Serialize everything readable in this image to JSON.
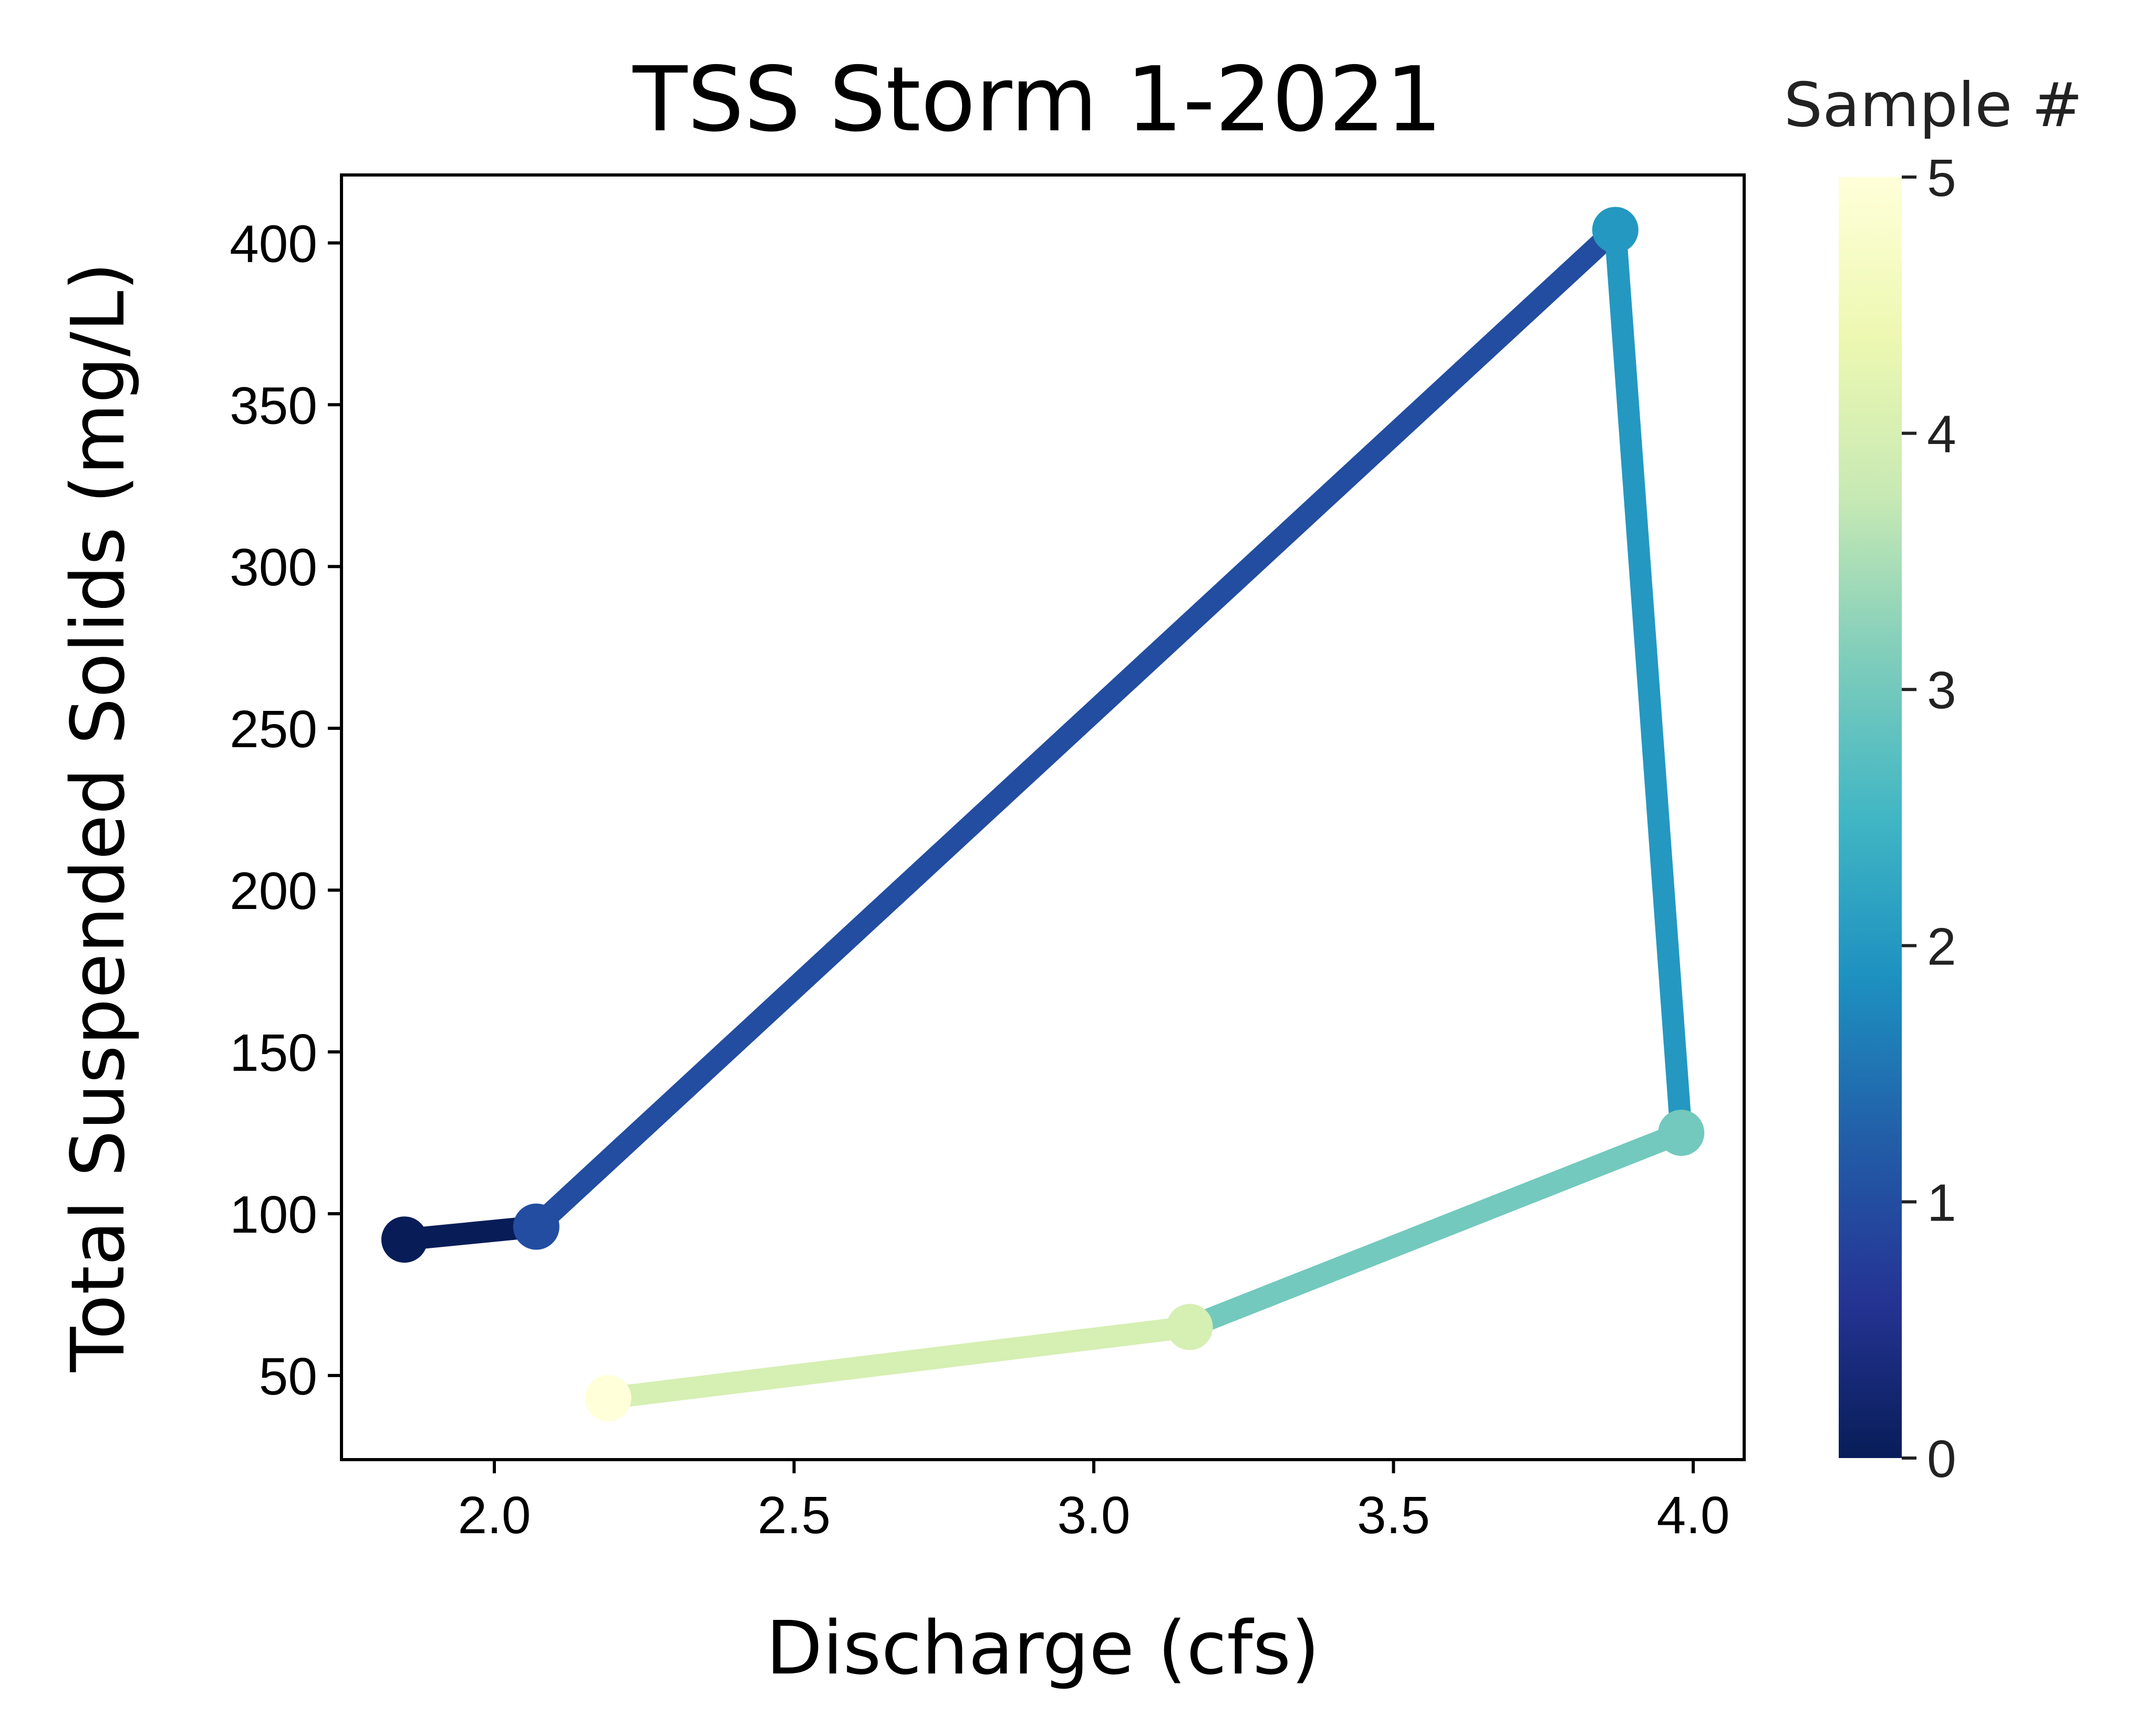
{
  "chart_data": {
    "type": "line",
    "title": "TSS Storm 1-2021",
    "xlabel": "Discharge (cfs)",
    "ylabel": "Total Suspended Solids (mg/L)",
    "xlim": [
      1.745,
      4.085
    ],
    "ylim": [
      24,
      421
    ],
    "xticks": [
      2.0,
      2.5,
      3.0,
      3.5,
      4.0
    ],
    "xtick_labels": [
      "2.0",
      "2.5",
      "3.0",
      "3.5",
      "4.0"
    ],
    "yticks": [
      50,
      100,
      150,
      200,
      250,
      300,
      350,
      400
    ],
    "ytick_labels": [
      "50",
      "100",
      "150",
      "200",
      "250",
      "300",
      "350",
      "400"
    ],
    "grid": false,
    "colorbar": {
      "title": "Sample #",
      "colormap": "YlGnBu_r",
      "range": [
        0,
        5
      ],
      "ticks": [
        0,
        1,
        2,
        3,
        4,
        5
      ],
      "tick_labels": [
        "0",
        "1",
        "2",
        "3",
        "4",
        "5"
      ]
    },
    "points": [
      {
        "sample": 0,
        "x": 1.85,
        "y": 92
      },
      {
        "sample": 1,
        "x": 2.07,
        "y": 96
      },
      {
        "sample": 2,
        "x": 3.87,
        "y": 404
      },
      {
        "sample": 3,
        "x": 3.98,
        "y": 125
      },
      {
        "sample": 4,
        "x": 3.16,
        "y": 65
      },
      {
        "sample": 5,
        "x": 2.19,
        "y": 43
      }
    ],
    "colors": [
      "#081d58",
      "#234da0",
      "#2498c1",
      "#73c9bd",
      "#d6efb3",
      "#ffffd9"
    ]
  }
}
